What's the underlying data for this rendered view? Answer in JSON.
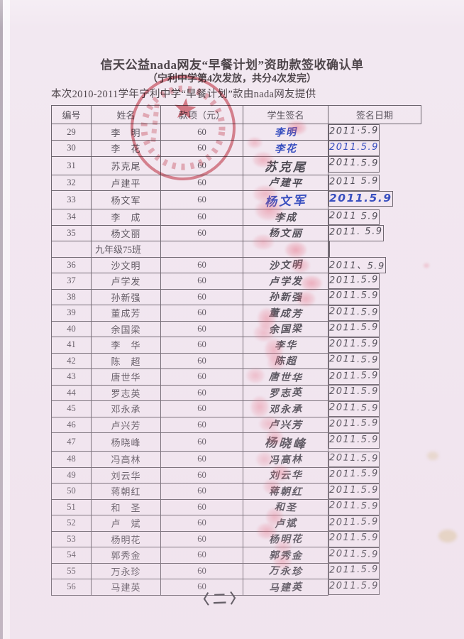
{
  "page": {
    "title": "信天公益nada网友“早餐计划”资助款签收确认单",
    "subtitle": "（宁利中学第4次发放，共分4次发完）",
    "provider_line": "本次2010-2011学年宁利中学“早餐计划”款由nada网友提供",
    "page_mark": "〈二〉"
  },
  "colors": {
    "paper": "#f2e8f1",
    "grid_line": "#665f68",
    "seal_red": "#cb4150",
    "fingerprint_red": "#e5586e",
    "blue_ink": "#2c46bd",
    "dark_ink": "#45434c"
  },
  "stamp": {
    "shape": "circular-seal-with-star"
  },
  "table": {
    "headers": [
      "编号",
      "姓名",
      "款项（元）",
      "学生签名",
      "签名日期"
    ],
    "rows": [
      {
        "id": "29",
        "name": "李　明",
        "amount": "60",
        "signature": "李明",
        "date": "2011·5.9",
        "sig_ink": "blue",
        "date_ink": "dark"
      },
      {
        "id": "30",
        "name": "李　花",
        "amount": "60",
        "signature": "李花",
        "date": "2011.5.9",
        "sig_ink": "blue",
        "date_ink": "blue"
      },
      {
        "id": "31",
        "name": "苏克尾",
        "amount": "60",
        "signature": "苏克尾",
        "date": "2011.5.9",
        "sig_ink": "dark",
        "date_ink": "dark",
        "sig_size": "lg"
      },
      {
        "id": "32",
        "name": "卢建平",
        "amount": "60",
        "signature": "卢建平",
        "date": "2011 5.9",
        "sig_ink": "dark",
        "date_ink": "dark"
      },
      {
        "id": "33",
        "name": "杨文军",
        "amount": "60",
        "signature": "杨文军",
        "date": "2011.5.9",
        "sig_ink": "blue",
        "date_ink": "blue",
        "sig_size": "lg",
        "date_size": "lg"
      },
      {
        "id": "34",
        "name": "李　成",
        "amount": "60",
        "signature": "李成",
        "date": "2011 5.9",
        "sig_ink": "dark",
        "date_ink": "dark"
      },
      {
        "id": "35",
        "name": "杨文丽",
        "amount": "60",
        "signature": "杨文丽",
        "date": "2011. 5.9",
        "sig_ink": "dark",
        "date_ink": "dark"
      },
      {
        "section": true,
        "id": "",
        "name": "九年级75班",
        "amount": "",
        "signature": "",
        "date": ""
      },
      {
        "id": "36",
        "name": "沙文明",
        "amount": "60",
        "signature": "沙文明",
        "date": "2011、5.9",
        "sig_ink": "dark",
        "date_ink": "dark"
      },
      {
        "id": "37",
        "name": "卢学发",
        "amount": "60",
        "signature": "卢学发",
        "date": "2011.5.9",
        "sig_ink": "dark",
        "date_ink": "dark"
      },
      {
        "id": "38",
        "name": "孙新强",
        "amount": "60",
        "signature": "孙新强",
        "date": "2011.5.9",
        "sig_ink": "dark",
        "date_ink": "dark"
      },
      {
        "id": "39",
        "name": "董成芳",
        "amount": "60",
        "signature": "董成芳",
        "date": "2011.5.9",
        "sig_ink": "dark",
        "date_ink": "dark"
      },
      {
        "id": "40",
        "name": "余国梁",
        "amount": "60",
        "signature": "余国梁",
        "date": "2011.5.9",
        "sig_ink": "dark",
        "date_ink": "dark"
      },
      {
        "id": "41",
        "name": "李　华",
        "amount": "60",
        "signature": "李华",
        "date": "2011.5.9",
        "sig_ink": "dark",
        "date_ink": "dark"
      },
      {
        "id": "42",
        "name": "陈　超",
        "amount": "60",
        "signature": "陈超",
        "date": "2011.5.9",
        "sig_ink": "dark",
        "date_ink": "dark"
      },
      {
        "id": "43",
        "name": "唐世华",
        "amount": "60",
        "signature": "唐世华",
        "date": "2011.5.9",
        "sig_ink": "dark",
        "date_ink": "dark"
      },
      {
        "id": "44",
        "name": "罗志英",
        "amount": "60",
        "signature": "罗志英",
        "date": "2011.5.9",
        "sig_ink": "dark",
        "date_ink": "dark"
      },
      {
        "id": "45",
        "name": "邓永承",
        "amount": "60",
        "signature": "邓永承",
        "date": "2011.5.9",
        "sig_ink": "dark",
        "date_ink": "dark"
      },
      {
        "id": "46",
        "name": "卢兴芳",
        "amount": "60",
        "signature": "卢兴芳",
        "date": "2011.5.9",
        "sig_ink": "dark",
        "date_ink": "dark"
      },
      {
        "id": "47",
        "name": "杨晓峰",
        "amount": "60",
        "signature": "杨晓峰",
        "date": "2011.5.9",
        "sig_ink": "dark",
        "date_ink": "dark",
        "sig_size": "lg"
      },
      {
        "id": "48",
        "name": "冯高林",
        "amount": "60",
        "signature": "冯高林",
        "date": "2011.5.9",
        "sig_ink": "dark",
        "date_ink": "dark"
      },
      {
        "id": "49",
        "name": "刘云华",
        "amount": "60",
        "signature": "刘云华",
        "date": "2011.5.9",
        "sig_ink": "dark",
        "date_ink": "dark"
      },
      {
        "id": "50",
        "name": "蒋朝红",
        "amount": "60",
        "signature": "蒋朝红",
        "date": "2011.5.9",
        "sig_ink": "dark",
        "date_ink": "dark"
      },
      {
        "id": "51",
        "name": "和　圣",
        "amount": "60",
        "signature": "和圣",
        "date": "2011.5.9",
        "sig_ink": "dark",
        "date_ink": "dark"
      },
      {
        "id": "52",
        "name": "卢　斌",
        "amount": "60",
        "signature": "卢斌",
        "date": "2011.5.9",
        "sig_ink": "dark",
        "date_ink": "dark"
      },
      {
        "id": "53",
        "name": "杨明花",
        "amount": "60",
        "signature": "杨明花",
        "date": "2011.5.9",
        "sig_ink": "dark",
        "date_ink": "dark"
      },
      {
        "id": "54",
        "name": "郭秀金",
        "amount": "60",
        "signature": "郭秀金",
        "date": "2011.5.9",
        "sig_ink": "dark",
        "date_ink": "dark"
      },
      {
        "id": "55",
        "name": "万永珍",
        "amount": "60",
        "signature": "万永珍",
        "date": "2011.5.9",
        "sig_ink": "dark",
        "date_ink": "dark"
      },
      {
        "id": "56",
        "name": "马建英",
        "amount": "60",
        "signature": "马建英",
        "date": "2011.5.9",
        "sig_ink": "dark",
        "date_ink": "dark"
      }
    ]
  }
}
